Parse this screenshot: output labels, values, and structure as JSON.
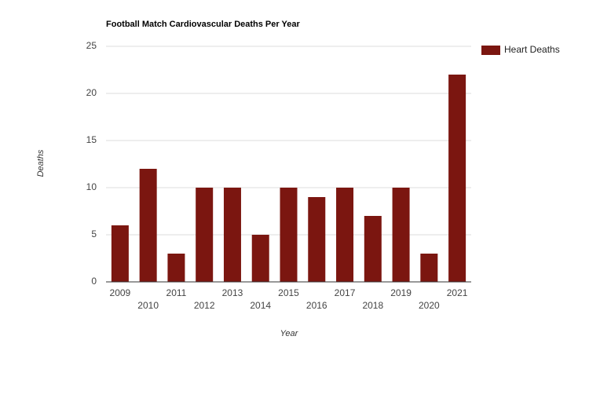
{
  "chart_data": {
    "type": "bar",
    "title": "Football Match Cardiovascular Deaths Per Year",
    "x_label": "Year",
    "y_label": "Deaths",
    "categories": [
      "2009",
      "2010",
      "2011",
      "2012",
      "2013",
      "2014",
      "2015",
      "2016",
      "2017",
      "2018",
      "2019",
      "2020",
      "2021"
    ],
    "series": [
      {
        "name": "Heart Deaths",
        "color": "#7b1610",
        "values": [
          6,
          12,
          3,
          10,
          10,
          5,
          10,
          9,
          10,
          7,
          10,
          3,
          22
        ]
      }
    ],
    "ylim": [
      0,
      25
    ],
    "yticks": [
      0,
      5,
      10,
      15,
      20,
      25
    ],
    "grid": true,
    "legend": "right"
  }
}
